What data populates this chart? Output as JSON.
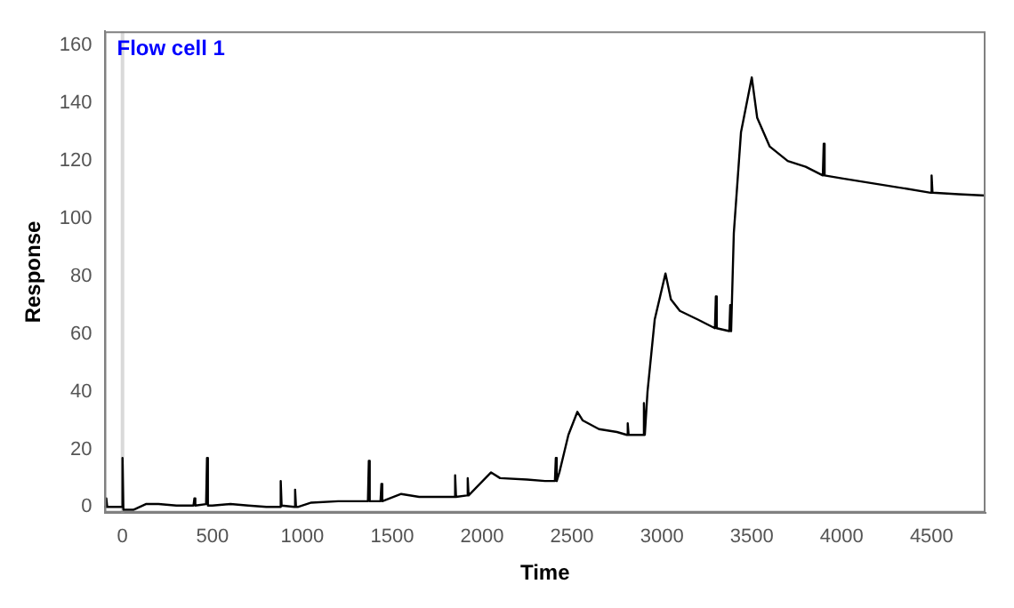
{
  "chart_data": {
    "type": "line",
    "title": "Flow cell 1",
    "xlabel": "Time",
    "ylabel": "Response",
    "x": [
      -100,
      -92,
      -90,
      -85,
      -60,
      -5,
      0,
      5,
      60,
      130,
      200,
      300,
      395,
      400,
      405,
      465,
      470,
      475,
      500,
      600,
      700,
      800,
      875,
      880,
      885,
      955,
      960,
      965,
      975,
      1050,
      1200,
      1300,
      1365,
      1370,
      1375,
      1435,
      1440,
      1445,
      1550,
      1650,
      1750,
      1845,
      1850,
      1855,
      1915,
      1920,
      1925,
      2050,
      2100,
      2250,
      2350,
      2405,
      2410,
      2415,
      2430,
      2480,
      2530,
      2560,
      2650,
      2750,
      2805,
      2810,
      2815,
      2890,
      2895,
      2900,
      2905,
      2920,
      2960,
      3020,
      3050,
      3100,
      3200,
      3295,
      3300,
      3305,
      3375,
      3380,
      3385,
      3400,
      3440,
      3500,
      3530,
      3600,
      3700,
      3800,
      3895,
      3900,
      3905,
      4000,
      4100,
      4300,
      4495,
      4500,
      4505,
      4650,
      4800
    ],
    "series": [
      {
        "color": "#000000",
        "values": [
          0,
          0,
          3,
          0,
          0,
          0,
          17,
          -1,
          -1,
          1,
          1,
          0.5,
          0.5,
          3,
          0.5,
          1,
          17,
          0.5,
          0.5,
          1,
          0.5,
          0,
          0,
          9,
          0.5,
          0,
          6,
          0,
          0,
          1.5,
          2,
          2,
          2,
          16,
          2,
          2,
          8,
          2,
          4.5,
          3.5,
          3.5,
          3.5,
          11,
          3.5,
          4,
          10,
          4,
          12,
          10,
          9.5,
          9,
          9,
          17,
          9,
          12,
          25,
          33,
          30,
          27,
          26,
          25,
          29,
          25,
          25,
          25,
          36,
          25,
          40,
          65,
          81,
          72,
          68,
          65,
          62,
          73,
          62,
          61,
          70,
          61,
          95,
          130,
          149,
          135,
          125,
          120,
          118,
          115,
          126,
          115,
          114,
          113,
          111,
          109,
          115,
          109,
          108.5,
          108
        ]
      }
    ],
    "xlim": [
      -100,
      4800
    ],
    "xticks": [
      0,
      500,
      1000,
      1500,
      2000,
      2500,
      3000,
      3500,
      4000,
      4500
    ],
    "ylim": [
      -2,
      165
    ],
    "yticks": [
      0,
      20,
      40,
      60,
      80,
      100,
      120,
      140,
      160
    ],
    "grid": false,
    "legend": false,
    "marker": "none",
    "line_style": "solid",
    "ref_lines": [
      {
        "axis": "x",
        "value": 0,
        "color": "#d9d9d9"
      }
    ]
  }
}
